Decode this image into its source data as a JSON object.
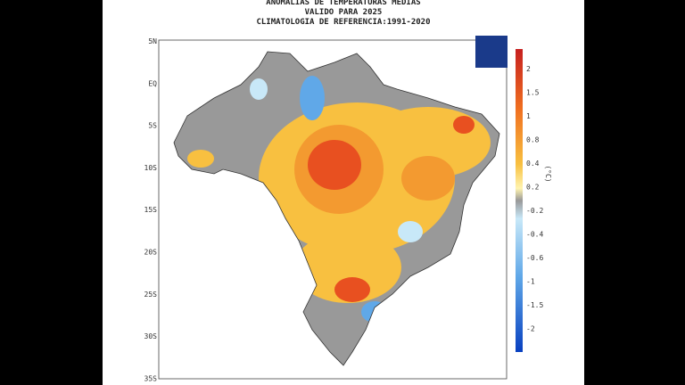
{
  "header": {
    "title_lines": [
      "ANOMALIAS DE TEMPERATURAS MEDIAS",
      "VALIDO PARA 2025",
      "CLIMATOLOGIA DE REFERENCIA:1991-2020"
    ]
  },
  "map": {
    "latitude_labels": [
      "5N",
      "EQ",
      "5S",
      "10S",
      "15S",
      "20S",
      "25S",
      "30S",
      "35S"
    ]
  },
  "colorbar": {
    "unit": "(°C)",
    "labels": [
      "2",
      "1.5",
      "1",
      "0.8",
      "0.4",
      "0.2",
      "-0.2",
      "-0.4",
      "-0.6",
      "-1",
      "-1.5",
      "-2"
    ]
  }
}
